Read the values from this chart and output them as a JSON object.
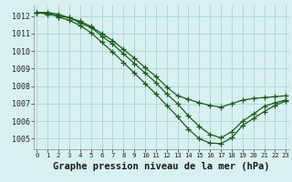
{
  "title": "Graphe pression niveau de la mer (hPa)",
  "bg_color": "#d8f0f0",
  "grid_color": "#b0d8d8",
  "line_color": "#1a5c1a",
  "ylim": [
    1004.4,
    1012.6
  ],
  "xlim": [
    -0.3,
    23.3
  ],
  "yticks": [
    1005,
    1006,
    1007,
    1008,
    1009,
    1010,
    1011,
    1012
  ],
  "xticks": [
    0,
    1,
    2,
    3,
    4,
    5,
    6,
    7,
    8,
    9,
    10,
    11,
    12,
    13,
    14,
    15,
    16,
    17,
    18,
    19,
    20,
    21,
    22,
    23
  ],
  "series": [
    [
      1012.2,
      1012.2,
      1012.1,
      1011.9,
      1011.6,
      1011.35,
      1010.85,
      1010.4,
      1009.85,
      1009.3,
      1008.75,
      1008.2,
      1007.55,
      1007.0,
      1006.3,
      1005.7,
      1005.25,
      1005.05,
      1005.4,
      1006.0,
      1006.4,
      1006.85,
      1007.05,
      1007.2
    ],
    [
      1012.2,
      1012.2,
      1011.95,
      1011.75,
      1011.45,
      1011.05,
      1010.5,
      1009.95,
      1009.35,
      1008.75,
      1008.15,
      1007.55,
      1006.9,
      1006.25,
      1005.55,
      1005.0,
      1004.75,
      1004.72,
      1005.05,
      1005.75,
      1006.15,
      1006.55,
      1006.9,
      1007.15
    ],
    [
      1012.2,
      1012.1,
      1012.0,
      1011.9,
      1011.7,
      1011.4,
      1011.0,
      1010.6,
      1010.1,
      1009.6,
      1009.05,
      1008.55,
      1007.95,
      1007.45,
      1007.25,
      1007.05,
      1006.9,
      1006.8,
      1007.0,
      1007.2,
      1007.3,
      1007.35,
      1007.4,
      1007.45
    ]
  ],
  "marker": "+",
  "markersize": 4,
  "linewidth": 0.9,
  "xlabel_fontsize": 7.5,
  "tick_fontsize": 6.0
}
